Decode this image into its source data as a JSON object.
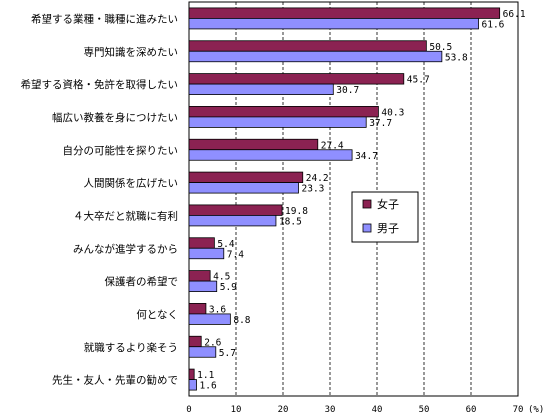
{
  "chart_data": {
    "type": "bar",
    "orientation": "horizontal",
    "categories": [
      "希望する業種・職種に進みたい",
      "専門知識を深めたい",
      "希望する資格・免許を取得したい",
      "幅広い教養を身につけたい",
      "自分の可能性を探りたい",
      "人間関係を広げたい",
      "４大卒だと就職に有利",
      "みんなが進学するから",
      "保護者の希望で",
      "何となく",
      "就職するより楽そう",
      "先生・友人・先輩の勧めで"
    ],
    "series": [
      {
        "name": "女子",
        "color": "#8b2252",
        "values": [
          66.1,
          50.5,
          45.7,
          40.3,
          27.4,
          24.2,
          19.8,
          5.4,
          4.5,
          3.6,
          2.6,
          1.1
        ],
        "labels": [
          "66.1",
          "50.5",
          "45.7",
          "40.3",
          "27.4",
          "24.2",
          "19.8",
          "5.4",
          "4.5",
          "3.6",
          "2.6",
          "1.1"
        ]
      },
      {
        "name": "男子",
        "color": "#8f8fff",
        "values": [
          61.6,
          53.8,
          30.7,
          37.7,
          34.7,
          23.3,
          18.5,
          7.4,
          5.9,
          8.8,
          5.7,
          1.6
        ],
        "labels": [
          "61.6",
          "53.8",
          "30.7",
          "37.7",
          "34.7",
          "23.3",
          "18.5",
          "7.4",
          "5.9",
          "8.8",
          "5.7",
          "1.6"
        ]
      }
    ],
    "xlim": [
      0,
      70
    ],
    "xticks": [
      "0",
      "10",
      "20",
      "30",
      "40",
      "50",
      "60",
      "70"
    ],
    "unit_label": "(%)",
    "grid": "vertical dashed",
    "legend": "right"
  }
}
